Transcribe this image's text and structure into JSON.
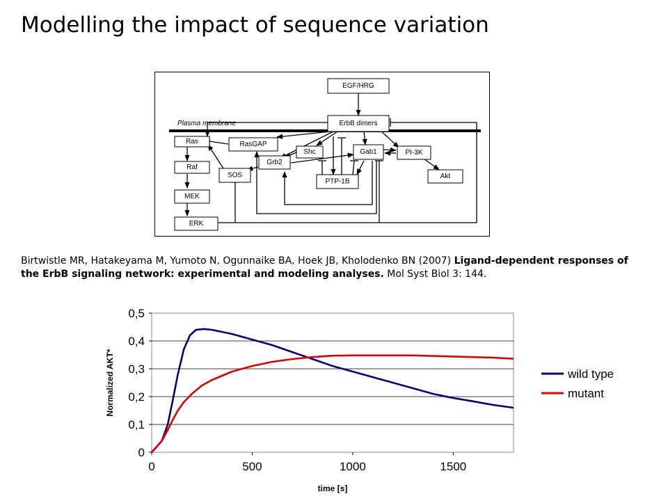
{
  "slide": {
    "title": "Modelling the impact of sequence variation"
  },
  "diagram": {
    "membrane_label": "Plasma membrane",
    "nodes": {
      "egf": "EGF/HRG",
      "erbb": "ErbB dimers",
      "ras": "Ras",
      "rasgap": "RasGAP",
      "shc": "Shc",
      "gab1": "Gab1",
      "pi3k": "PI-3K",
      "raf": "Raf",
      "grb2": "Grb2",
      "sos": "SOS",
      "ptp1b": "PTP-1B",
      "akt": "Akt",
      "mek": "MEK",
      "erk": "ERK"
    }
  },
  "citation": {
    "authors": "Birtwistle MR, Hatakeyama M, Yumoto N, Ogunnaike BA, Hoek JB, Kholodenko BN (2007) ",
    "title": "Ligand-dependent responses of the ErbB signaling network: experimental and modeling analyses.",
    "journal": " Mol Syst Biol 3: 144."
  },
  "chart_data": {
    "type": "line",
    "xlabel": "time [s]",
    "ylabel": "Normalized AKT*",
    "xlim": [
      0,
      1800
    ],
    "ylim": [
      0,
      0.5
    ],
    "x_ticks": [
      "0",
      "500",
      "1000",
      "1500"
    ],
    "y_ticks": [
      "0",
      "0,1",
      "0,2",
      "0,3",
      "0,4",
      "0,5"
    ],
    "grid": "horizontal",
    "legend_position": "right",
    "series": [
      {
        "name": "wild type",
        "color": "#000080",
        "points": [
          [
            0,
            0
          ],
          [
            50,
            0.04
          ],
          [
            80,
            0.1
          ],
          [
            100,
            0.17
          ],
          [
            130,
            0.28
          ],
          [
            160,
            0.37
          ],
          [
            190,
            0.42
          ],
          [
            220,
            0.44
          ],
          [
            260,
            0.443
          ],
          [
            300,
            0.44
          ],
          [
            400,
            0.425
          ],
          [
            500,
            0.405
          ],
          [
            600,
            0.385
          ],
          [
            700,
            0.36
          ],
          [
            800,
            0.335
          ],
          [
            900,
            0.31
          ],
          [
            1000,
            0.29
          ],
          [
            1100,
            0.27
          ],
          [
            1200,
            0.25
          ],
          [
            1300,
            0.23
          ],
          [
            1400,
            0.21
          ],
          [
            1500,
            0.195
          ],
          [
            1600,
            0.183
          ],
          [
            1700,
            0.17
          ],
          [
            1800,
            0.16
          ]
        ]
      },
      {
        "name": "mutant",
        "color": "#e00000",
        "points": [
          [
            0,
            0
          ],
          [
            50,
            0.04
          ],
          [
            80,
            0.08
          ],
          [
            100,
            0.11
          ],
          [
            130,
            0.15
          ],
          [
            160,
            0.18
          ],
          [
            200,
            0.21
          ],
          [
            250,
            0.24
          ],
          [
            300,
            0.26
          ],
          [
            400,
            0.29
          ],
          [
            500,
            0.31
          ],
          [
            600,
            0.325
          ],
          [
            700,
            0.335
          ],
          [
            800,
            0.342
          ],
          [
            900,
            0.347
          ],
          [
            1000,
            0.348
          ],
          [
            1100,
            0.348
          ],
          [
            1200,
            0.348
          ],
          [
            1300,
            0.348
          ],
          [
            1400,
            0.346
          ],
          [
            1500,
            0.344
          ],
          [
            1600,
            0.342
          ],
          [
            1700,
            0.34
          ],
          [
            1800,
            0.336
          ]
        ]
      }
    ]
  }
}
